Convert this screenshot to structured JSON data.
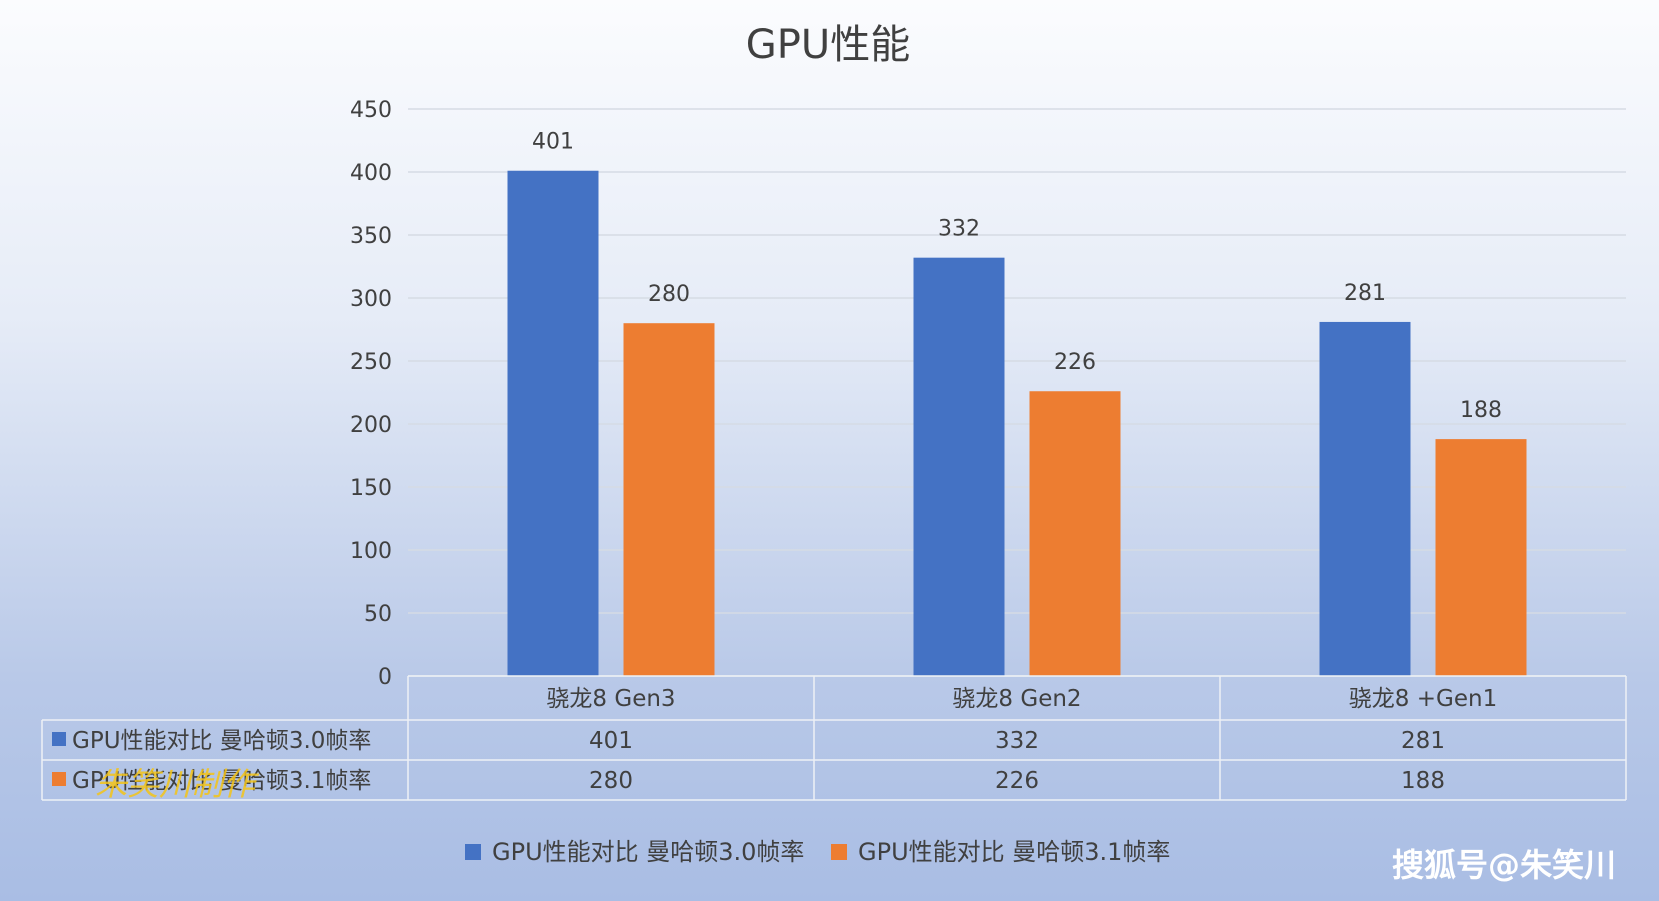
{
  "chart_data": {
    "type": "bar",
    "title": "GPU性能",
    "categories": [
      "骁龙8 Gen3",
      "骁龙8 Gen2",
      "骁龙8 +Gen1"
    ],
    "series": [
      {
        "name": "GPU性能对比 曼哈顿3.0帧率",
        "values": [
          401,
          332,
          281
        ],
        "color": "#4472c4"
      },
      {
        "name": "GPU性能对比 曼哈顿3.1帧率",
        "values": [
          280,
          226,
          188
        ],
        "color": "#ed7d31"
      }
    ],
    "ylim": [
      0,
      450
    ],
    "yticks": [
      0,
      50,
      100,
      150,
      200,
      250,
      300,
      350,
      400,
      450
    ],
    "grid": true,
    "legend": "bottom",
    "data_table": true
  },
  "watermark": "搜狐号@朱笑川",
  "stamp": "朱笑川制作"
}
